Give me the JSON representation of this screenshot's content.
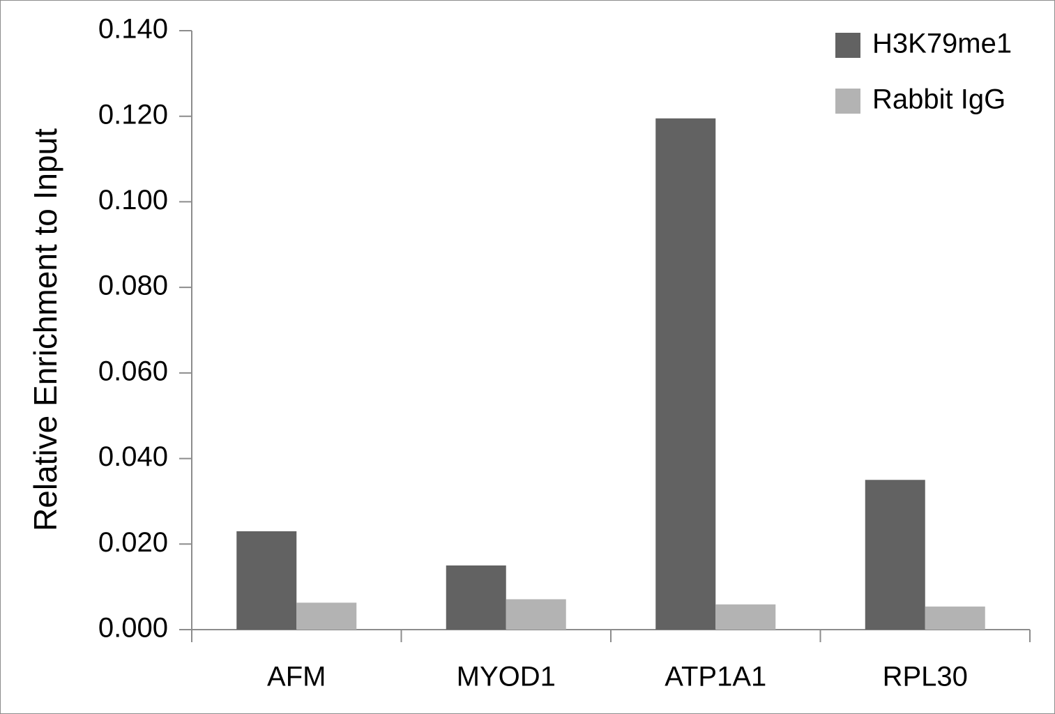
{
  "chart_data": {
    "type": "bar",
    "title": "",
    "xlabel": "",
    "ylabel": "Relative Enrichment to Input",
    "categories": [
      "AFM",
      "MYOD1",
      "ATP1A1",
      "RPL30"
    ],
    "series": [
      {
        "name": "H3K79me1",
        "color": "#626262",
        "values": [
          0.023,
          0.015,
          0.1195,
          0.035
        ]
      },
      {
        "name": "Rabbit IgG",
        "color": "#b3b3b3",
        "values": [
          0.0063,
          0.0071,
          0.0059,
          0.0054
        ]
      }
    ],
    "ylim": [
      0,
      0.14
    ],
    "yticks": [
      0.0,
      0.02,
      0.04,
      0.06,
      0.08,
      0.1,
      0.12,
      0.14
    ],
    "ytick_labels": [
      "0.000",
      "0.020",
      "0.040",
      "0.060",
      "0.080",
      "0.100",
      "0.120",
      "0.140"
    ],
    "grid": false,
    "legend_position": "top-right",
    "axis_color": "#8c8c8c"
  }
}
